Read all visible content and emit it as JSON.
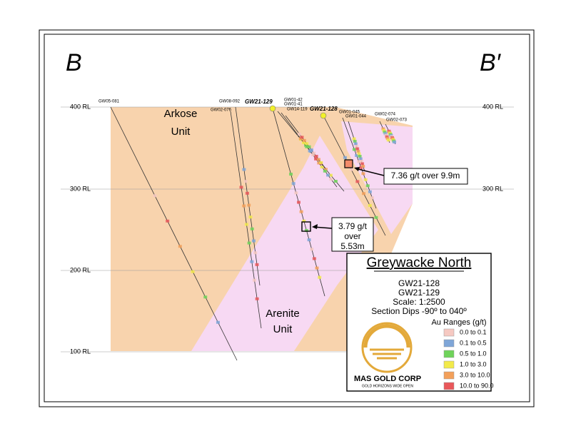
{
  "section": {
    "left_label": "B",
    "right_label": "B′"
  },
  "elevation_labels": {
    "left": [
      "400 RL",
      "300 RL",
      "200 RL",
      "100 RL"
    ],
    "right": [
      "400 RL",
      "300 RL"
    ]
  },
  "drill_holes": [
    "GW05-081",
    "GW08-092",
    "GW21-129",
    "GW01-42",
    "GW01-41",
    "GW02-076",
    "GW14-119",
    "GW21-128",
    "GW01-045",
    "GW01-044",
    "GW02-074",
    "GW02-073"
  ],
  "units": [
    {
      "name": "Arkose",
      "word": "Unit"
    },
    {
      "name": "Arenite",
      "word": "Unit"
    }
  ],
  "callouts": [
    {
      "lines": [
        "7.36 g/t over 9.9m"
      ]
    },
    {
      "lines": [
        "3.79 g/t",
        "over",
        "5.53m"
      ]
    }
  ],
  "legend": {
    "title": "Greywacke North",
    "holes": [
      "GW21-128",
      "GW21-129"
    ],
    "scale": "Scale: 1:2500",
    "dips": "Section Dips -90º to 040º",
    "ranges_title": "Au Ranges (g/t)",
    "ranges": [
      {
        "label": "0.0 to 0.1",
        "color": "#f6c9c2"
      },
      {
        "label": "0.1 to 0.5",
        "color": "#7fa6d8"
      },
      {
        "label": "0.5 to 1.0",
        "color": "#6fd35a"
      },
      {
        "label": "1.0 to 3.0",
        "color": "#f2ea4a"
      },
      {
        "label": "3.0 to 10.0",
        "color": "#f3a05a"
      },
      {
        "label": "10.0 to 90.0",
        "color": "#e9575a"
      }
    ]
  },
  "logo": {
    "name": "MAS GOLD CORP",
    "tagline": "GOLD HORIZONS WIDE OPEN"
  }
}
